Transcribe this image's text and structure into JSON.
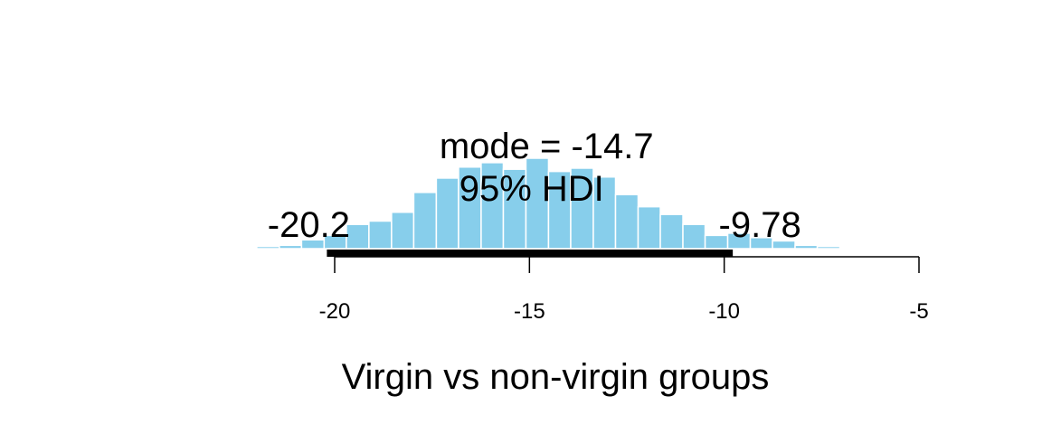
{
  "chart_data": {
    "type": "histogram",
    "xlabel": "Virgin vs non-virgin groups",
    "xlim": [
      -22,
      -5
    ],
    "ylim": [
      0,
      100
    ],
    "x_ticks": [
      -20,
      -15,
      -10,
      -5
    ],
    "x_tick_labels": [
      "-20",
      "-15",
      "-10",
      "-5"
    ],
    "bar_color": "#87CEEB",
    "bins": [
      {
        "x0": -22.0,
        "x1": -21.42,
        "y": 2
      },
      {
        "x0": -21.42,
        "x1": -20.85,
        "y": 3
      },
      {
        "x0": -20.85,
        "x1": -20.27,
        "y": 8
      },
      {
        "x0": -20.27,
        "x1": -19.7,
        "y": 12
      },
      {
        "x0": -19.7,
        "x1": -19.12,
        "y": 22
      },
      {
        "x0": -19.12,
        "x1": -18.54,
        "y": 25
      },
      {
        "x0": -18.54,
        "x1": -17.97,
        "y": 33
      },
      {
        "x0": -17.97,
        "x1": -17.39,
        "y": 51
      },
      {
        "x0": -17.39,
        "x1": -16.82,
        "y": 64
      },
      {
        "x0": -16.82,
        "x1": -16.24,
        "y": 74
      },
      {
        "x0": -16.24,
        "x1": -15.67,
        "y": 78
      },
      {
        "x0": -15.67,
        "x1": -15.09,
        "y": 72
      },
      {
        "x0": -15.09,
        "x1": -14.51,
        "y": 82
      },
      {
        "x0": -14.51,
        "x1": -13.94,
        "y": 70
      },
      {
        "x0": -13.94,
        "x1": -13.36,
        "y": 73
      },
      {
        "x0": -13.36,
        "x1": -12.79,
        "y": 65
      },
      {
        "x0": -12.79,
        "x1": -12.21,
        "y": 49
      },
      {
        "x0": -12.21,
        "x1": -11.64,
        "y": 38
      },
      {
        "x0": -11.64,
        "x1": -11.06,
        "y": 31
      },
      {
        "x0": -11.06,
        "x1": -10.49,
        "y": 22
      },
      {
        "x0": -10.49,
        "x1": -9.91,
        "y": 12
      },
      {
        "x0": -9.91,
        "x1": -9.33,
        "y": 14
      },
      {
        "x0": -9.33,
        "x1": -8.76,
        "y": 10
      },
      {
        "x0": -8.76,
        "x1": -8.18,
        "y": 7
      },
      {
        "x0": -8.18,
        "x1": -7.61,
        "y": 3
      },
      {
        "x0": -7.61,
        "x1": -7.03,
        "y": 2
      }
    ],
    "mode": -14.7,
    "mode_label": "mode = -14.7",
    "hdi_label": "95% HDI",
    "hdi": [
      -20.2,
      -9.78
    ],
    "hdi_low_label": "-20.2",
    "hdi_high_label": "-9.78"
  }
}
